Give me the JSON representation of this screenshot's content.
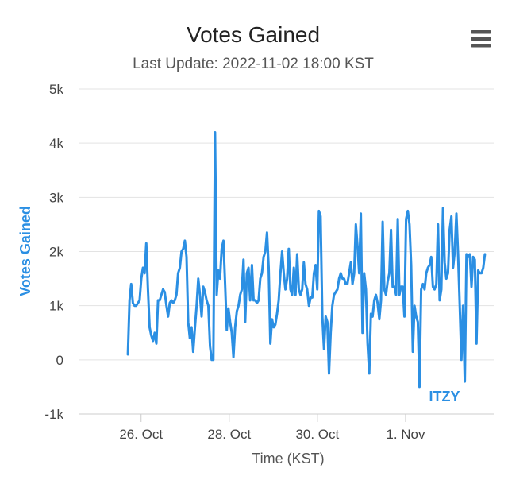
{
  "chart_data": {
    "type": "line",
    "title": "Votes Gained",
    "subtitle": "Last Update: 2022-11-02 18:00 KST",
    "xlabel": "Time (KST)",
    "ylabel": "Votes Gained",
    "ylim": [
      -1000,
      5000
    ],
    "y_ticks": [
      {
        "value": 5000,
        "label": "5k"
      },
      {
        "value": 4000,
        "label": "4k"
      },
      {
        "value": 3000,
        "label": "3k"
      },
      {
        "value": 2000,
        "label": "2k"
      },
      {
        "value": 1000,
        "label": "1k"
      },
      {
        "value": 0,
        "label": "0"
      },
      {
        "value": -1000,
        "label": "-1k"
      }
    ],
    "xlim_days": [
      24.6,
      34.0
    ],
    "x_ticks": [
      {
        "value": 26,
        "label": "26. Oct"
      },
      {
        "value": 28,
        "label": "28. Oct"
      },
      {
        "value": 30,
        "label": "30. Oct"
      },
      {
        "value": 32,
        "label": "1. Nov"
      }
    ],
    "grid": true,
    "series": [
      {
        "name": "ITZY",
        "color": "#2b8fe3",
        "x_start_day": 25.7,
        "x_end_day": 33.8,
        "values": [
          100,
          1100,
          1400,
          1050,
          1000,
          1000,
          1050,
          1100,
          1500,
          1700,
          1600,
          2150,
          1300,
          600,
          450,
          350,
          500,
          300,
          1100,
          1100,
          1200,
          1300,
          1250,
          1000,
          800,
          1050,
          1100,
          1050,
          1100,
          1200,
          1600,
          1700,
          2000,
          2050,
          2200,
          1900,
          700,
          400,
          600,
          150,
          600,
          1000,
          1500,
          1200,
          800,
          1350,
          1250,
          1100,
          1000,
          250,
          0,
          0,
          4200,
          1200,
          1650,
          1500,
          2050,
          2200,
          1400,
          550,
          950,
          700,
          500,
          50,
          600,
          900,
          1000,
          1200,
          1300,
          1850,
          700,
          1600,
          1700,
          1100,
          1750,
          1100,
          1100,
          1050,
          1100,
          1500,
          1600,
          1900,
          2000,
          2350,
          1700,
          300,
          750,
          600,
          650,
          850,
          1100,
          1600,
          2000,
          1600,
          1300,
          1500,
          2050,
          1300,
          1200,
          1700,
          1200,
          1950,
          1300,
          1200,
          1300,
          1800,
          1400,
          1300,
          1000,
          1150,
          1150,
          1600,
          1750,
          1300,
          2750,
          2650,
          800,
          200,
          800,
          700,
          -250,
          500,
          1000,
          1200,
          1250,
          1300,
          1500,
          1600,
          1500,
          1500,
          1400,
          1400,
          1600,
          1800,
          1400,
          1600,
          2500,
          2100,
          1600,
          2700,
          500,
          1600,
          1300,
          300,
          -250,
          850,
          800,
          1100,
          1200,
          1050,
          750,
          1100,
          2550,
          1300,
          1200,
          1450,
          1600,
          2400,
          1350,
          1350,
          1200,
          2600,
          1200,
          1350,
          1350,
          800,
          2600,
          2750,
          2500,
          1750,
          150,
          1000,
          800,
          700,
          -500,
          1300,
          1400,
          1300,
          1600,
          1700,
          1750,
          1900,
          1350,
          1300,
          1400,
          2500,
          1100,
          1300,
          2800,
          1800,
          1500,
          1600,
          2400,
          2650,
          1700,
          2000,
          2700,
          1950,
          1000,
          0,
          1000,
          -400,
          1950,
          1900,
          1950,
          1350,
          1900,
          1850,
          300,
          1650,
          1600,
          1600,
          1700,
          1950
        ]
      }
    ],
    "series_label": "ITZY"
  },
  "toolbar": {
    "menu_icon": "hamburger-menu-icon"
  }
}
